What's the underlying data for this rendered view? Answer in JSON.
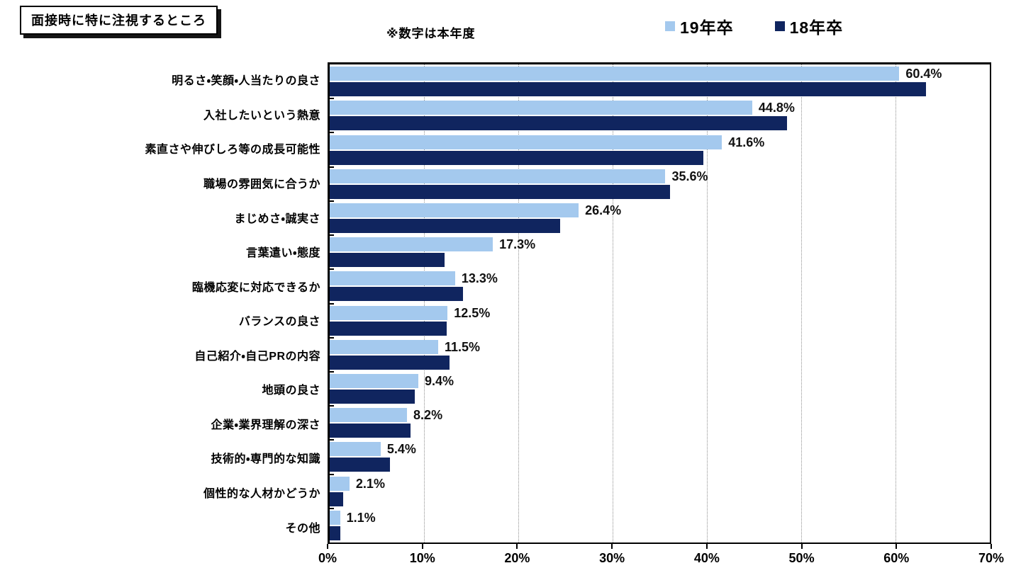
{
  "page": {
    "title": "面接時に特に注視するところ",
    "note": "※数字は本年度"
  },
  "legend": {
    "items": [
      {
        "label": "19年卒",
        "color": "#a4c9ee"
      },
      {
        "label": "18年卒",
        "color": "#10255f"
      }
    ]
  },
  "colors": {
    "series_19": "#a4c9ee",
    "series_18": "#10255f",
    "plot_border": "#000000",
    "gridline": "#8f8f8f",
    "text": "#000000"
  },
  "chart_data": {
    "type": "bar",
    "orientation": "horizontal",
    "title": "面接時に特に注視するところ",
    "note": "※数字は本年度",
    "categories": [
      "明るさ・笑顔・人当たりの良さ",
      "入社したいという熱意",
      "素直さや伸びしろ等の成長可能性",
      "職場の雰囲気に合うか",
      "まじめさ・誠実さ",
      "言葉遣い・態度",
      "臨機応変に対応できるか",
      "バランスの良さ",
      "自己紹介・自己PRの内容",
      "地頭の良さ",
      "企業・業界理解の深さ",
      "技術的・専門的な知識",
      "個性的な人材かどうか",
      "その他"
    ],
    "series": [
      {
        "name": "19年卒",
        "color": "#a4c9ee",
        "values": [
          60.4,
          44.8,
          41.6,
          35.6,
          26.4,
          17.3,
          13.3,
          12.5,
          11.5,
          9.4,
          8.2,
          5.4,
          2.1,
          1.1
        ],
        "data_labels": [
          "60.4%",
          "44.8%",
          "41.6%",
          "35.6%",
          "26.4%",
          "17.3%",
          "13.3%",
          "12.5%",
          "11.5%",
          "9.4%",
          "8.2%",
          "5.4%",
          "2.1%",
          "1.1%"
        ]
      },
      {
        "name": "18年卒",
        "color": "#10255f",
        "values": [
          63.2,
          48.5,
          39.6,
          36.1,
          24.4,
          12.2,
          14.1,
          12.4,
          12.7,
          9.0,
          8.6,
          6.4,
          1.4,
          1.1
        ],
        "data_labels": []
      }
    ],
    "x_axis": {
      "ticks": [
        "0%",
        "10%",
        "20%",
        "30%",
        "40%",
        "50%",
        "60%",
        "70%"
      ],
      "min": 0,
      "max": 70
    },
    "grid": "vertical-dotted",
    "legend_position": "top-right",
    "data_labels_shown_for": "19年卒"
  }
}
